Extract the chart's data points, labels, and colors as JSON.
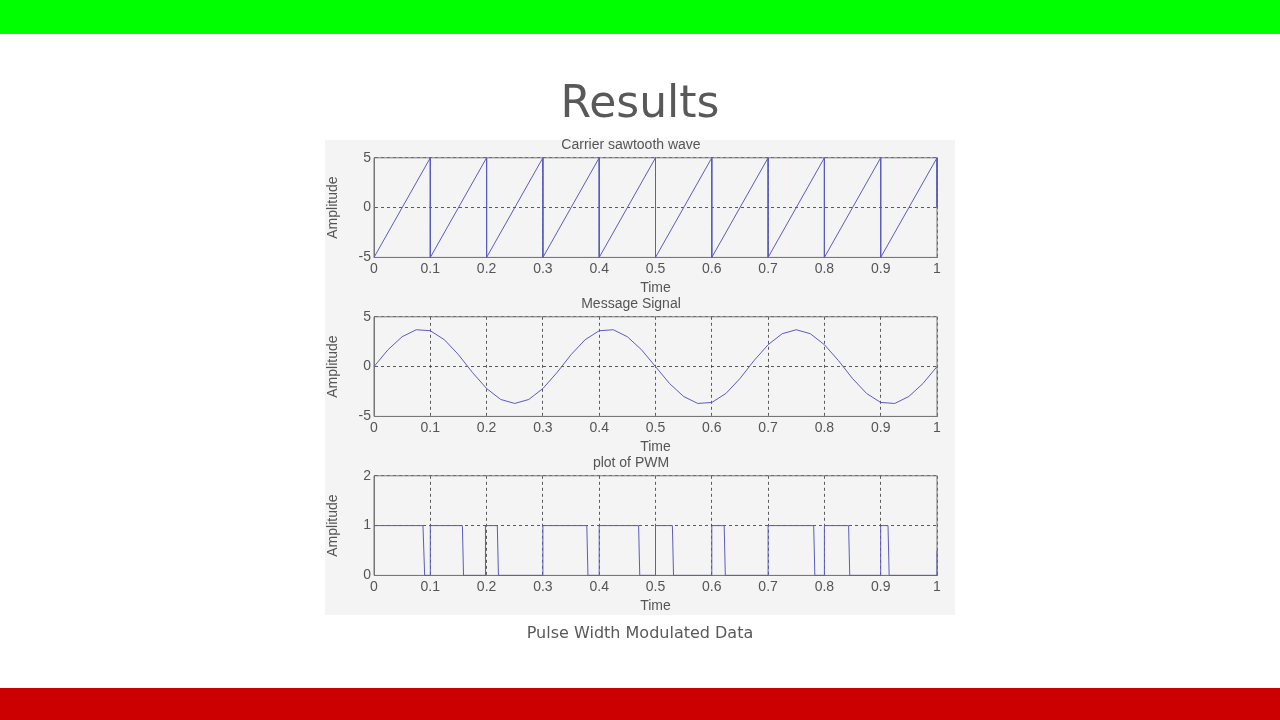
{
  "chart_data": [
    {
      "type": "line",
      "title": "Carrier sawtooth wave",
      "xlabel": "Time",
      "ylabel": "Amplitude",
      "annotations": [
        "Results"
      ],
      "series": [
        {
          "color": "#5b5bc0",
          "x": [
            0,
            0.1,
            0.1,
            0.2,
            0.2,
            0.3,
            0.3,
            0.4,
            0.4,
            0.5,
            0.5,
            0.6,
            0.6,
            0.7,
            0.7,
            0.8,
            0.8,
            0.9,
            0.9,
            1,
            1
          ],
          "values": [
            -5,
            5,
            -5,
            5,
            -5,
            5,
            -5,
            5,
            -5,
            5,
            -5,
            5,
            -5,
            5,
            -5,
            5,
            -5,
            5,
            -5,
            5,
            0
          ]
        }
      ],
      "xlim": [
        0,
        1
      ],
      "xticks": [
        0,
        0.1,
        0.2,
        0.3,
        0.4,
        0.5,
        0.6,
        0.7,
        0.8,
        0.9,
        1
      ],
      "ylim": [
        -5,
        5
      ],
      "yticks": [
        -5,
        0,
        5
      ],
      "grid": true
    },
    {
      "type": "line",
      "title": "Message Signal",
      "xlabel": "Time",
      "ylabel": "Amplitude",
      "series": [
        {
          "color": "#5b5bc0",
          "x": [
            0,
            0.025,
            0.05,
            0.075,
            0.1,
            0.125,
            0.15,
            0.175,
            0.2,
            0.225,
            0.25,
            0.275,
            0.3,
            0.325,
            0.35,
            0.375,
            0.4,
            0.425,
            0.45,
            0.475,
            0.5,
            0.525,
            0.55,
            0.575,
            0.6,
            0.625,
            0.65,
            0.675,
            0.7,
            0.725,
            0.75,
            0.775,
            0.8,
            0.825,
            0.85,
            0.875,
            0.9,
            0.925,
            0.95,
            0.975,
            1
          ],
          "values": [
            0,
            1.7,
            3.0,
            3.7,
            3.6,
            2.7,
            1.2,
            -0.6,
            -2.2,
            -3.3,
            -3.7,
            -3.3,
            -2.2,
            -0.6,
            1.2,
            2.7,
            3.6,
            3.7,
            3.0,
            1.7,
            0,
            -1.7,
            -3.0,
            -3.7,
            -3.6,
            -2.7,
            -1.2,
            0.6,
            2.2,
            3.3,
            3.7,
            3.3,
            2.2,
            0.6,
            -1.2,
            -2.7,
            -3.6,
            -3.7,
            -3.0,
            -1.7,
            0
          ]
        }
      ],
      "xlim": [
        0,
        1
      ],
      "xticks": [
        0,
        0.1,
        0.2,
        0.3,
        0.4,
        0.5,
        0.6,
        0.7,
        0.8,
        0.9,
        1
      ],
      "ylim": [
        -5,
        5
      ],
      "yticks": [
        -5,
        0,
        5
      ],
      "grid": true
    },
    {
      "type": "line",
      "title": "plot of PWM",
      "xlabel": "Time",
      "ylabel": "Amplitude",
      "annotations": [
        "Pulse Width Modulated Data"
      ],
      "series": [
        {
          "color": "#5b5bc0",
          "x": [
            0,
            0.087,
            0.09,
            0.1,
            0.1,
            0.157,
            0.159,
            0.198,
            0.198,
            0.219,
            0.221,
            0.3,
            0.3,
            0.378,
            0.38,
            0.4,
            0.4,
            0.47,
            0.472,
            0.5,
            0.5,
            0.53,
            0.532,
            0.6,
            0.6,
            0.622,
            0.624,
            0.7,
            0.7,
            0.781,
            0.783,
            0.8,
            0.8,
            0.843,
            0.845,
            0.9,
            0.9,
            0.913,
            0.915,
            1,
            1
          ],
          "values": [
            1,
            1,
            0,
            0,
            1,
            1,
            0,
            0,
            1,
            1,
            0,
            0,
            1,
            1,
            0,
            0,
            1,
            1,
            0,
            0,
            1,
            1,
            0,
            0,
            1,
            1,
            0,
            0,
            1,
            1,
            0,
            0,
            1,
            1,
            0,
            0,
            1,
            1,
            0,
            0,
            0.5
          ]
        }
      ],
      "xlim": [
        0,
        1
      ],
      "xticks": [
        0,
        0.1,
        0.2,
        0.3,
        0.4,
        0.5,
        0.6,
        0.7,
        0.8,
        0.9,
        1
      ],
      "ylim": [
        0,
        2
      ],
      "yticks": [
        0,
        1,
        2
      ],
      "grid": true
    }
  ]
}
